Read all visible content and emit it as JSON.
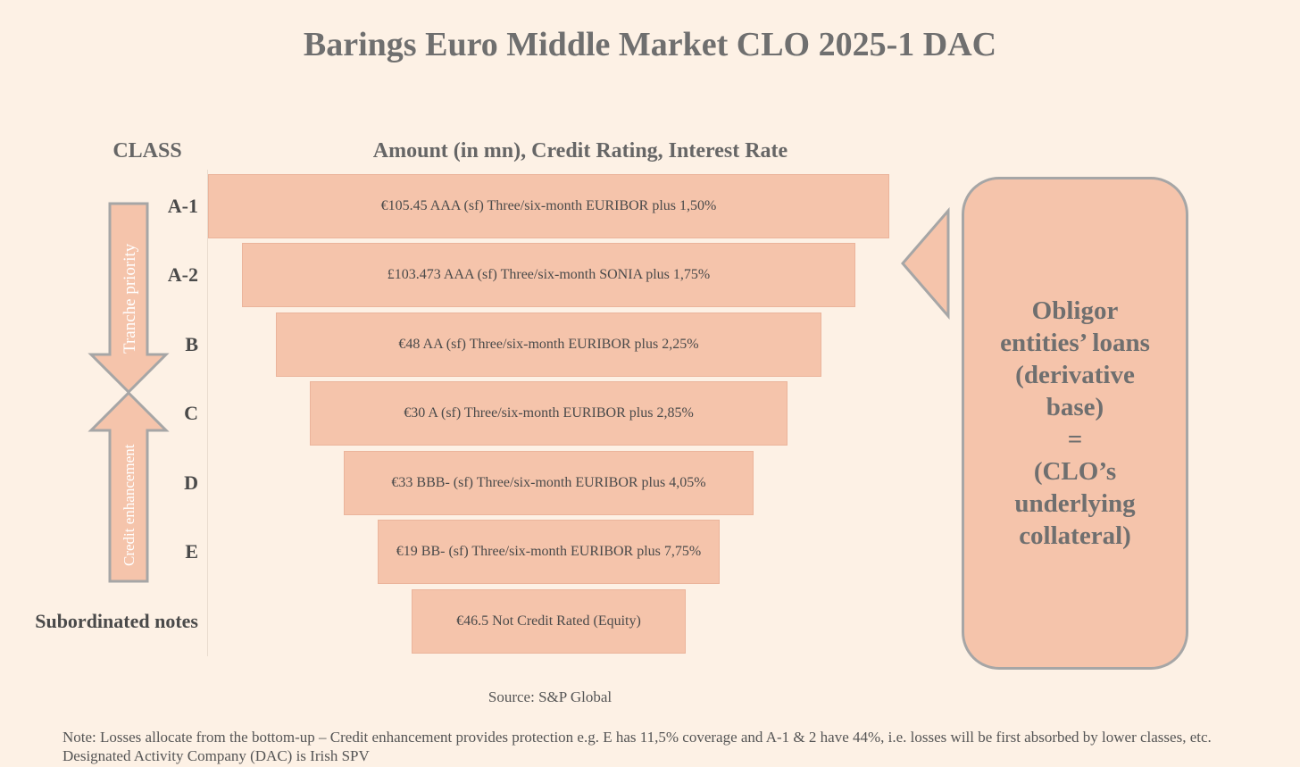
{
  "title": "Barings Euro Middle Market CLO 2025-1 DAC",
  "headers": {
    "class": "CLASS",
    "columns": "Amount (in mn), Credit Rating, Interest Rate"
  },
  "tranches": [
    {
      "class": "A-1",
      "text": "€105.45 AAA (sf)  Three/six-month EURIBOR plus 1,50%"
    },
    {
      "class": "A-2",
      "text": "£103.473 AAA (sf)  Three/six-month SONIA plus 1,75%"
    },
    {
      "class": "B",
      "text": "€48 AA (sf)  Three/six-month EURIBOR plus 2,25%"
    },
    {
      "class": "C",
      "text": "€30 A (sf)  Three/six-month EURIBOR plus 2,85%"
    },
    {
      "class": "D",
      "text": "€33 BBB- (sf)  Three/six-month EURIBOR plus 4,05%"
    },
    {
      "class": "E",
      "text": "€19 BB- (sf)  Three/six-month EURIBOR plus 7,75%"
    },
    {
      "class": "Subordinated notes",
      "text": "€46.5 Not Credit Rated (Equity)"
    }
  ],
  "arrows": {
    "down_label": "Tranche priority",
    "up_label": "Credit enhancement"
  },
  "callout": "Obligor\nentities’ loans\n(derivative\nbase)\n=\n(CLO’s\nunderlying\ncollateral)",
  "source": "Source: S&P Global",
  "notes": [
    "Note: Losses allocate from the bottom-up – Credit enhancement provides protection e.g. E has 11,5% coverage and A-1 & 2 have 44%, i.e. losses will be first absorbed by lower classes, etc.",
    "Designated Activity Company (DAC) is Irish SPV"
  ],
  "colors": {
    "background": "#fdf1e5",
    "tranche_fill": "#f5c4ab",
    "outline": "#a6a6a6",
    "text": "#555555"
  }
}
